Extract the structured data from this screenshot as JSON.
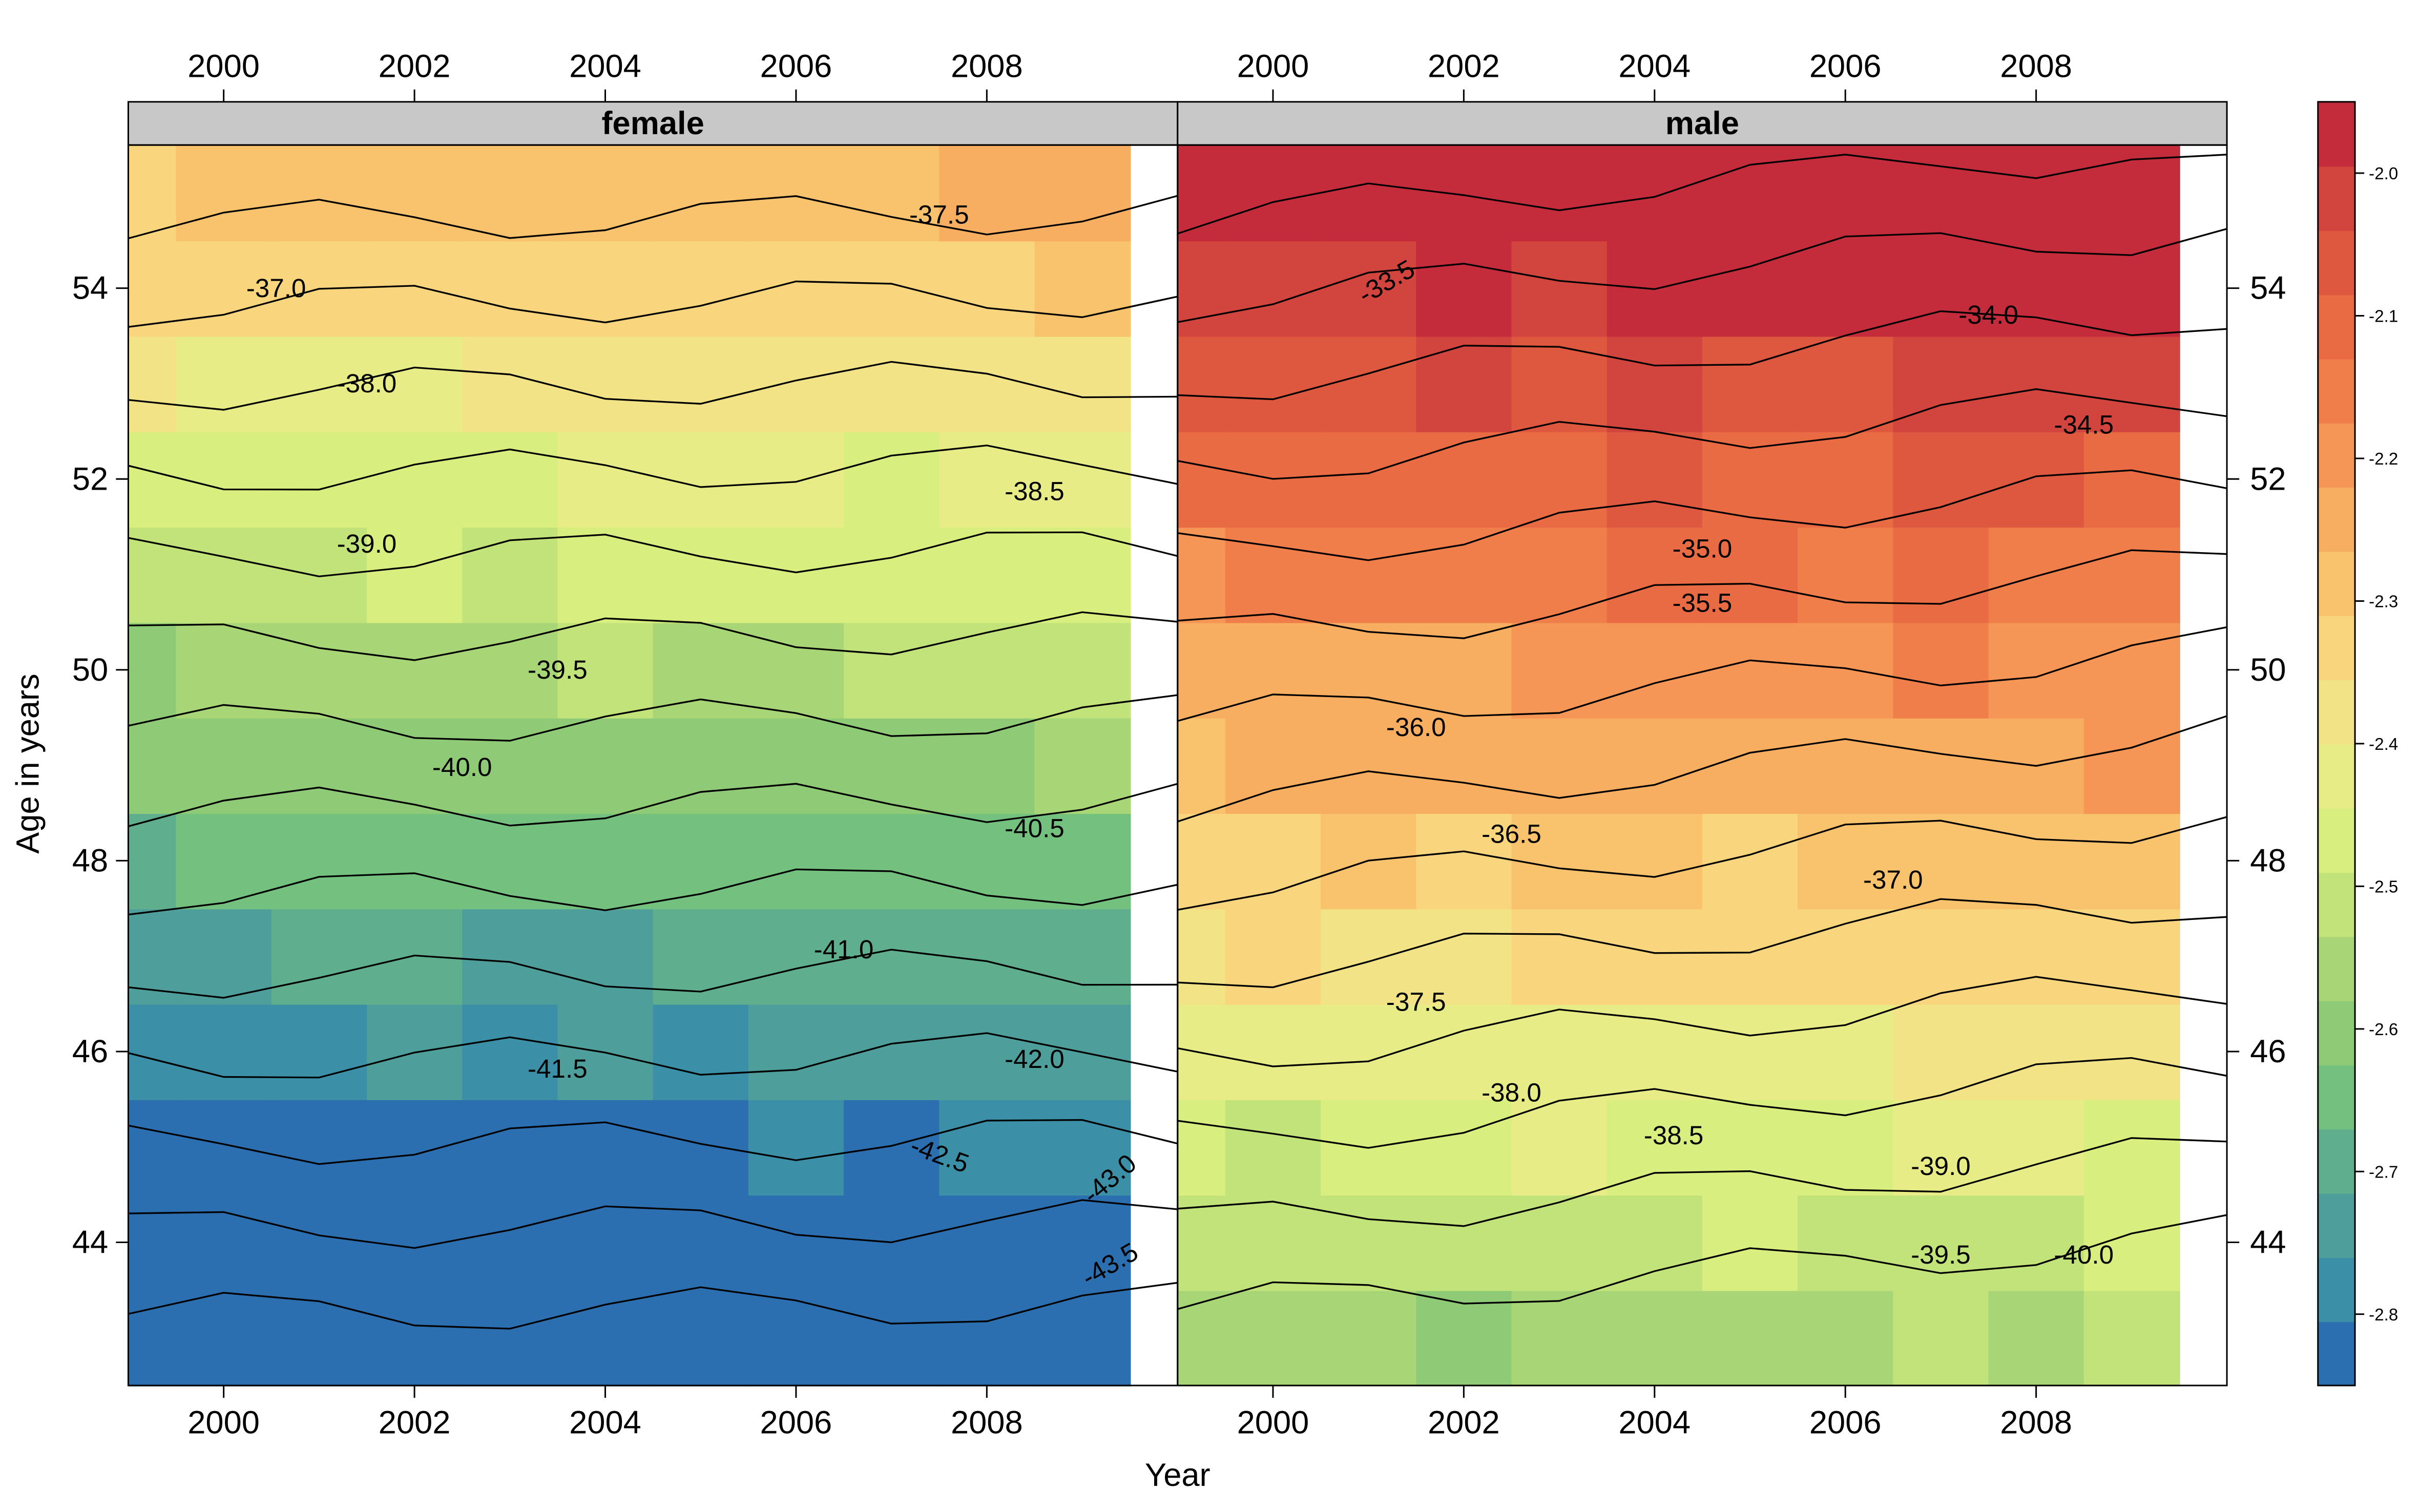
{
  "chart_data": {
    "type": "heatmap",
    "xlabel": "Year",
    "ylabel": "Age in years",
    "xlim": [
      1999,
      2010
    ],
    "ylim": [
      42.5,
      55.5
    ],
    "x_ticks": [
      "2000",
      "2002",
      "2004",
      "2006",
      "2008"
    ],
    "y_ticks": [
      "44",
      "46",
      "48",
      "50",
      "52",
      "54"
    ],
    "colorbar": {
      "range": [
        -2.85,
        -1.95
      ],
      "ticks": [
        "-2.0",
        "-2.1",
        "-2.2",
        "-2.3",
        "-2.4",
        "-2.5",
        "-2.6",
        "-2.7",
        "-2.8"
      ],
      "colors": [
        "#2B6FB0",
        "#3B8FA6",
        "#4E9E9B",
        "#5FAF8E",
        "#74C07E",
        "#8FCB77",
        "#A8D677",
        "#C2E27A",
        "#D8EE7F",
        "#E8EC86",
        "#F2E386",
        "#F9D57E",
        "#F9C26C",
        "#F8AE61",
        "#F59656",
        "#F07E4B",
        "#E96B44",
        "#DE5840",
        "#D2443E",
        "#C42C3C"
      ]
    },
    "panels": [
      {
        "strip": "female",
        "base": -2.6,
        "contour_labels": [
          {
            "text": "-37.0",
            "x": 2000.55,
            "y": 53.98
          },
          {
            "text": "-37.5",
            "x": 2007.5,
            "y": 54.75
          },
          {
            "text": "-38.0",
            "x": 2001.5,
            "y": 52.98
          },
          {
            "text": "-38.5",
            "x": 2008.5,
            "y": 51.85
          },
          {
            "text": "-39.0",
            "x": 2001.5,
            "y": 51.3
          },
          {
            "text": "-39.5",
            "x": 2003.5,
            "y": 49.98
          },
          {
            "text": "-40.0",
            "x": 2002.5,
            "y": 48.96
          },
          {
            "text": "-40.5",
            "x": 2008.5,
            "y": 48.32
          },
          {
            "text": "-41.0",
            "x": 2006.5,
            "y": 47.05
          },
          {
            "text": "-41.5",
            "x": 2003.5,
            "y": 45.8
          },
          {
            "text": "-42.0",
            "x": 2008.5,
            "y": 45.9
          },
          {
            "text": "-42.5",
            "x": 2007.5,
            "y": 44.9,
            "rot": 20
          },
          {
            "text": "-43.0",
            "x": 2009.3,
            "y": 44.65,
            "rot": -40
          },
          {
            "text": "-43.5",
            "x": 2009.3,
            "y": 43.75,
            "rot": -30
          }
        ]
      },
      {
        "strip": "male",
        "base": -2.25,
        "contour_labels": [
          {
            "text": "-33.5",
            "x": 2001.2,
            "y": 54.05,
            "rot": -30
          },
          {
            "text": "-34.0",
            "x": 2007.5,
            "y": 53.7
          },
          {
            "text": "-34.5",
            "x": 2008.5,
            "y": 52.55
          },
          {
            "text": "-35.0",
            "x": 2004.5,
            "y": 51.25
          },
          {
            "text": "-35.5",
            "x": 2004.5,
            "y": 50.68
          },
          {
            "text": "-36.0",
            "x": 2001.5,
            "y": 49.38
          },
          {
            "text": "-36.5",
            "x": 2002.5,
            "y": 48.26
          },
          {
            "text": "-37.0",
            "x": 2006.5,
            "y": 47.78
          },
          {
            "text": "-37.5",
            "x": 2001.5,
            "y": 46.5
          },
          {
            "text": "-38.0",
            "x": 2002.5,
            "y": 45.55
          },
          {
            "text": "-38.5",
            "x": 2004.2,
            "y": 45.1
          },
          {
            "text": "-39.0",
            "x": 2007.0,
            "y": 44.78
          },
          {
            "text": "-39.5",
            "x": 2007.0,
            "y": 43.85
          },
          {
            "text": "-40.0",
            "x": 2008.5,
            "y": 43.85
          }
        ]
      }
    ]
  }
}
